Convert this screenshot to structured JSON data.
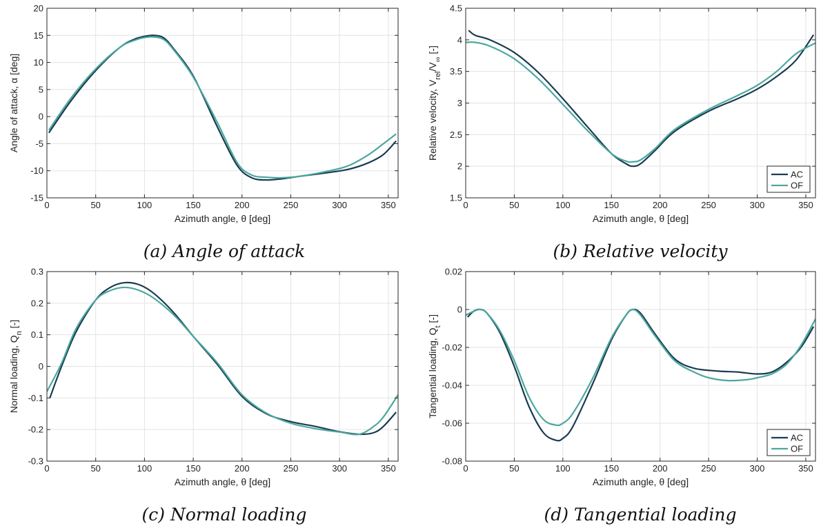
{
  "colors": {
    "AC": "#1a3a52",
    "OF": "#4aa89e",
    "grid": "#e3e3e3",
    "axis": "#262626"
  },
  "chart_data": [
    {
      "id": "a",
      "type": "line",
      "caption": "(a) Angle of attack",
      "xlabel": "Azimuth angle, θ [deg]",
      "ylabel": "Angle of attack, α [deg]",
      "xlim": [
        0,
        360
      ],
      "ylim": [
        -15,
        20
      ],
      "xticks": [
        0,
        50,
        100,
        150,
        200,
        250,
        300,
        350
      ],
      "yticks": [
        -15,
        -10,
        -5,
        0,
        5,
        10,
        15,
        20
      ],
      "tick_labels_x": [
        "0",
        "50",
        "100",
        "150",
        "200",
        "250",
        "300",
        "350"
      ],
      "tick_labels_y": [
        "-15",
        "-10",
        "-5",
        "0",
        "5",
        "10",
        "15",
        "20"
      ],
      "grid": true,
      "legend": null,
      "series": [
        {
          "key": "AC",
          "x": [
            2,
            25,
            50,
            75,
            90,
            100,
            110,
            120,
            130,
            150,
            175,
            195,
            210,
            225,
            240,
            260,
            290,
            310,
            330,
            345,
            358
          ],
          "y": [
            -3,
            3,
            8.5,
            12.8,
            14.3,
            14.8,
            15,
            14.5,
            12.5,
            7.5,
            -2,
            -9,
            -11.3,
            -11.7,
            -11.5,
            -11,
            -10.3,
            -9.7,
            -8.5,
            -7,
            -4.5
          ]
        },
        {
          "key": "OF",
          "x": [
            2,
            25,
            50,
            75,
            90,
            100,
            110,
            120,
            130,
            150,
            175,
            195,
            210,
            225,
            240,
            260,
            290,
            310,
            330,
            345,
            358
          ],
          "y": [
            -2.5,
            3.5,
            8.8,
            12.8,
            14.1,
            14.6,
            14.7,
            14.2,
            12.3,
            7.3,
            -1.2,
            -8.5,
            -10.8,
            -11.2,
            -11.3,
            -11,
            -10,
            -9,
            -7,
            -5,
            -3.2
          ]
        }
      ]
    },
    {
      "id": "b",
      "type": "line",
      "caption": "(b) Relative velocity",
      "xlabel": "Azimuth angle, θ [deg]",
      "ylabel": "Relative velocity, V_rel/V_∞ [-]",
      "xlim": [
        0,
        360
      ],
      "ylim": [
        1.5,
        4.5
      ],
      "xticks": [
        0,
        50,
        100,
        150,
        200,
        250,
        300,
        350
      ],
      "yticks": [
        1.5,
        2,
        2.5,
        3,
        3.5,
        4,
        4.5
      ],
      "tick_labels_x": [
        "0",
        "50",
        "100",
        "150",
        "200",
        "250",
        "300",
        "350"
      ],
      "tick_labels_y": [
        "1.5",
        "2",
        "2.5",
        "3",
        "3.5",
        "4",
        "4.5"
      ],
      "grid": true,
      "legend": "bottom-right",
      "legend_labels": [
        "AC",
        "OF"
      ],
      "series": [
        {
          "key": "AC",
          "x": [
            3,
            10,
            25,
            50,
            75,
            100,
            125,
            150,
            165,
            172,
            180,
            195,
            215,
            250,
            280,
            300,
            320,
            340,
            358
          ],
          "y": [
            4.15,
            4.07,
            4,
            3.8,
            3.48,
            3.07,
            2.63,
            2.2,
            2.04,
            2,
            2.04,
            2.25,
            2.55,
            2.87,
            3.07,
            3.22,
            3.42,
            3.68,
            4.08
          ]
        },
        {
          "key": "OF",
          "x": [
            0,
            10,
            25,
            50,
            75,
            100,
            125,
            150,
            165,
            172,
            180,
            195,
            215,
            250,
            280,
            300,
            320,
            340,
            360
          ],
          "y": [
            3.96,
            3.96,
            3.9,
            3.7,
            3.38,
            2.98,
            2.57,
            2.2,
            2.08,
            2.07,
            2.1,
            2.28,
            2.58,
            2.9,
            3.12,
            3.28,
            3.5,
            3.78,
            3.95
          ]
        }
      ]
    },
    {
      "id": "c",
      "type": "line",
      "caption": "(c) Normal loading",
      "xlabel": "Azimuth angle, θ [deg]",
      "ylabel": "Normal loading, Q_n [-]",
      "xlim": [
        0,
        360
      ],
      "ylim": [
        -0.3,
        0.3
      ],
      "xticks": [
        0,
        50,
        100,
        150,
        200,
        250,
        300,
        350
      ],
      "yticks": [
        -0.3,
        -0.2,
        -0.1,
        0,
        0.1,
        0.2,
        0.3
      ],
      "tick_labels_x": [
        "0",
        "50",
        "100",
        "150",
        "200",
        "250",
        "300",
        "350"
      ],
      "tick_labels_y": [
        "-0.3",
        "-0.2",
        "-0.1",
        "0",
        "0.1",
        "0.2",
        "0.3"
      ],
      "grid": true,
      "legend": null,
      "series": [
        {
          "key": "AC",
          "x": [
            3,
            15,
            30,
            50,
            65,
            80,
            95,
            110,
            130,
            150,
            175,
            200,
            225,
            250,
            275,
            300,
            320,
            335,
            345,
            358
          ],
          "y": [
            -0.1,
            0.0,
            0.11,
            0.21,
            0.25,
            0.265,
            0.258,
            0.23,
            0.17,
            0.095,
            0.005,
            -0.095,
            -0.15,
            -0.175,
            -0.19,
            -0.207,
            -0.215,
            -0.21,
            -0.19,
            -0.145
          ]
        },
        {
          "key": "OF",
          "x": [
            0,
            15,
            30,
            50,
            65,
            80,
            95,
            110,
            130,
            150,
            175,
            200,
            225,
            250,
            275,
            300,
            320,
            335,
            345,
            360
          ],
          "y": [
            -0.08,
            0.01,
            0.12,
            0.21,
            0.24,
            0.25,
            0.24,
            0.215,
            0.163,
            0.095,
            0.01,
            -0.09,
            -0.148,
            -0.18,
            -0.197,
            -0.208,
            -0.215,
            -0.19,
            -0.16,
            -0.09
          ]
        }
      ]
    },
    {
      "id": "d",
      "type": "line",
      "caption": "(d) Tangential loading",
      "xlabel": "Azimuth angle, θ [deg]",
      "ylabel": "Tangential loading, Q_t [-]",
      "xlim": [
        0,
        360
      ],
      "ylim": [
        -0.08,
        0.02
      ],
      "xticks": [
        0,
        50,
        100,
        150,
        200,
        250,
        300,
        350
      ],
      "yticks": [
        -0.08,
        -0.06,
        -0.04,
        -0.02,
        0,
        0.02
      ],
      "tick_labels_x": [
        "0",
        "50",
        "100",
        "150",
        "200",
        "250",
        "300",
        "350"
      ],
      "tick_labels_y": [
        "-0.08",
        "-0.06",
        "-0.04",
        "-0.02",
        "0",
        "0.02"
      ],
      "grid": true,
      "legend": "bottom-right",
      "legend_labels": [
        "AC",
        "OF"
      ],
      "series": [
        {
          "key": "AC",
          "x": [
            2,
            8,
            15,
            22,
            35,
            50,
            65,
            80,
            93,
            100,
            110,
            130,
            150,
            165,
            172,
            180,
            195,
            215,
            235,
            260,
            280,
            300,
            315,
            330,
            345,
            358
          ],
          "y": [
            -0.004,
            -0.001,
            0.0,
            -0.002,
            -0.012,
            -0.03,
            -0.051,
            -0.065,
            -0.069,
            -0.068,
            -0.062,
            -0.04,
            -0.016,
            -0.003,
            0.0,
            -0.002,
            -0.013,
            -0.026,
            -0.031,
            -0.0325,
            -0.033,
            -0.034,
            -0.033,
            -0.028,
            -0.02,
            -0.009
          ]
        },
        {
          "key": "OF",
          "x": [
            0,
            8,
            15,
            22,
            35,
            50,
            65,
            80,
            93,
            100,
            110,
            130,
            150,
            165,
            172,
            180,
            195,
            215,
            235,
            250,
            270,
            290,
            300,
            315,
            330,
            345,
            360
          ],
          "y": [
            -0.003,
            -0.001,
            0.0,
            -0.002,
            -0.011,
            -0.027,
            -0.046,
            -0.058,
            -0.061,
            -0.06,
            -0.055,
            -0.037,
            -0.015,
            -0.003,
            0.0,
            -0.003,
            -0.014,
            -0.027,
            -0.033,
            -0.036,
            -0.0375,
            -0.037,
            -0.036,
            -0.034,
            -0.029,
            -0.019,
            -0.005
          ]
        }
      ]
    }
  ]
}
